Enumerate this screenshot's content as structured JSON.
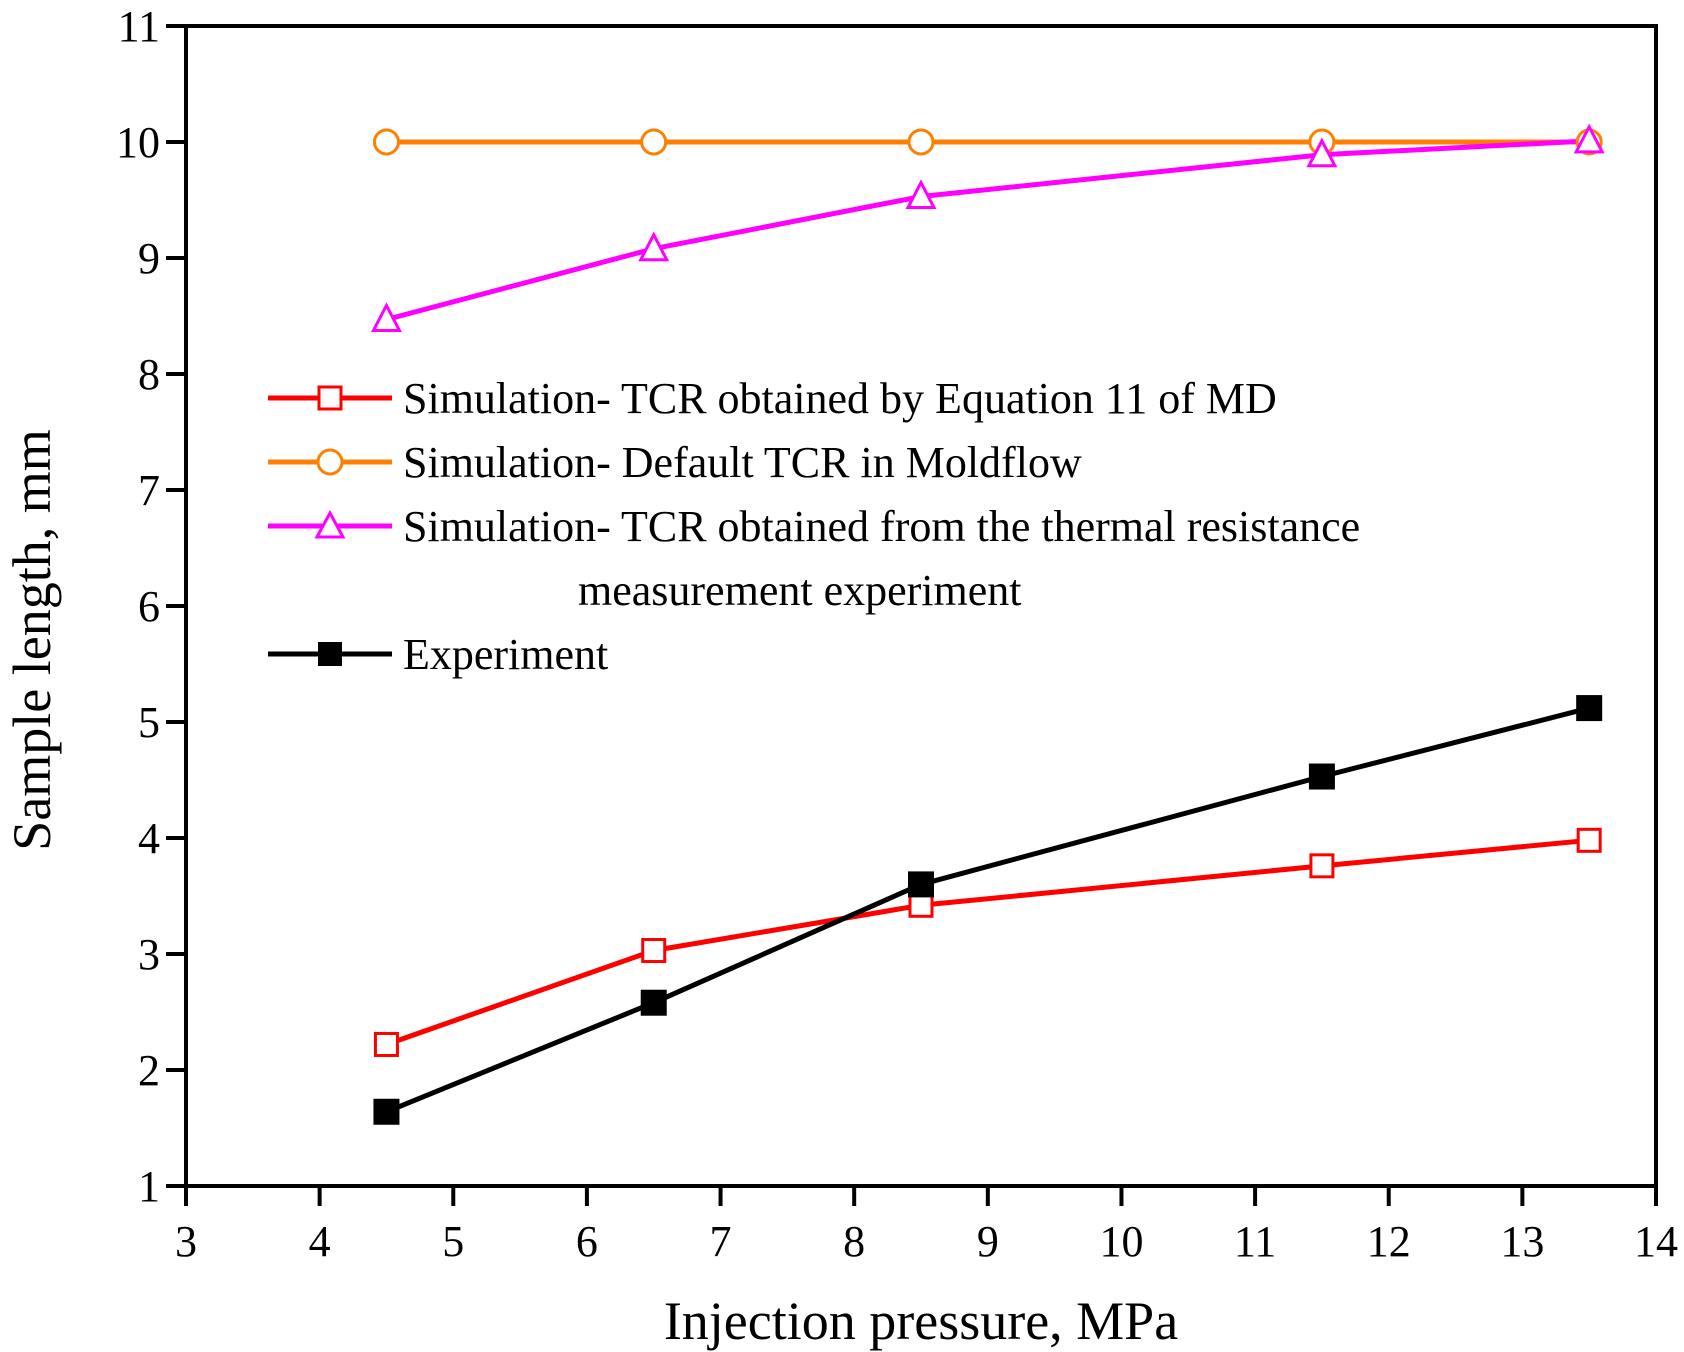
{
  "chart_data": {
    "type": "line",
    "xlabel": "Injection pressure, MPa",
    "ylabel": "Sample length, mm",
    "xlim": [
      3,
      14
    ],
    "ylim": [
      1,
      11
    ],
    "xticks": [
      "3",
      "4",
      "5",
      "6",
      "7",
      "8",
      "9",
      "10",
      "11",
      "12",
      "13",
      "14"
    ],
    "yticks": [
      "1",
      "2",
      "3",
      "4",
      "5",
      "6",
      "7",
      "8",
      "9",
      "10",
      "11"
    ],
    "grid": false,
    "legend_position": "center-left",
    "x": [
      4.5,
      6.5,
      8.5,
      11.5,
      13.5
    ],
    "series": [
      {
        "name": "Simulation- TCR obtained by Equation 11 of MD",
        "color": "#ff0000",
        "marker": "open-square",
        "values": [
          2.22,
          3.03,
          3.42,
          3.76,
          3.98
        ]
      },
      {
        "name": "Simulation- Default TCR in Moldflow",
        "color": "#ff8000",
        "marker": "open-circle",
        "values": [
          10.0,
          10.0,
          10.0,
          10.0,
          10.0
        ]
      },
      {
        "name": "Simulation- TCR obtained from the  thermal resistance",
        "name_line2": "measurement experiment",
        "color": "#ff00ff",
        "marker": "open-triangle",
        "values": [
          8.47,
          9.08,
          9.53,
          9.89,
          10.01
        ]
      },
      {
        "name": "Experiment",
        "color": "#000000",
        "marker": "filled-square",
        "values": [
          1.64,
          2.58,
          3.6,
          4.53,
          5.12
        ]
      }
    ]
  }
}
